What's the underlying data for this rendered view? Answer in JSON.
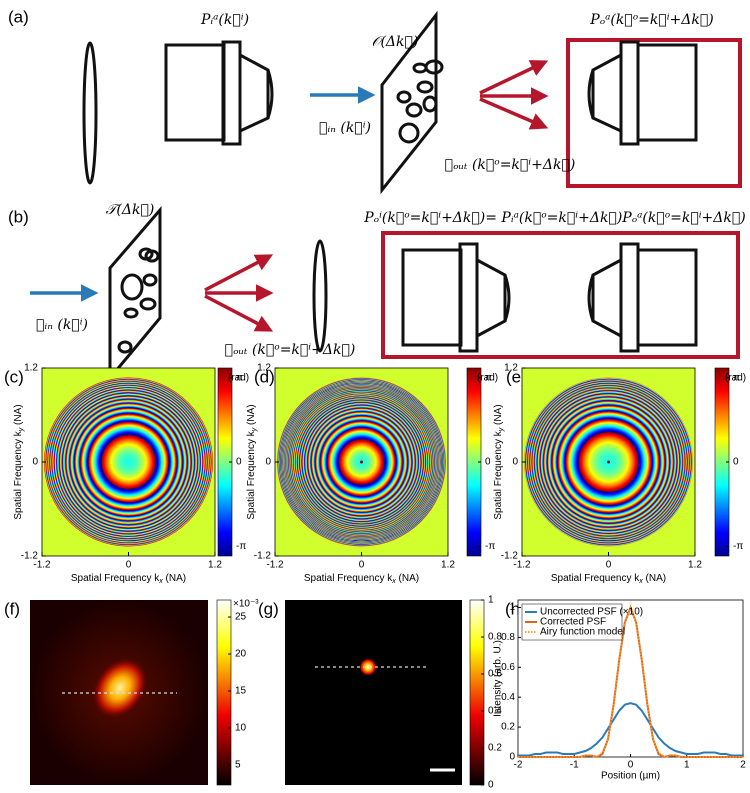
{
  "panel_labels": [
    "(a)",
    "(b)",
    "(c)",
    "(d)",
    "(e)",
    "(f)",
    "(g)",
    "(h)"
  ],
  "panel_a": {
    "input_pupil": "Pᵢᵃ(k⃗ⁱ)",
    "object": "𝒪(Δk⃗)",
    "input_field": "ℰᵢₙ (k⃗ⁱ)",
    "output_pupil": "Pₒᵃ(k⃗ᵒ=k⃗ⁱ+Δk⃗)",
    "output_field": "ℰₒᵤₜ (k⃗ᵒ=k⃗ⁱ+Δk⃗)"
  },
  "panel_b": {
    "transmission": "𝒯(Δk⃗)",
    "input_field": "ℰᵢₙ (k⃗ⁱ)",
    "output_field": "ℰₒᵤₜ (k⃗ᵒ=k⃗ⁱ+Δk⃗)",
    "effective_pupil": "Pₒⁱ(k⃗ᵒ=k⃗ⁱ+Δk⃗)= Pᵢᵃ(k⃗ᵒ=k⃗ⁱ+Δk⃗)Pₒᵃ(k⃗ᵒ=k⃗ⁱ+Δk⃗)"
  },
  "phase_maps": {
    "x_label": {
      "text": "Spatial Frequency k",
      "sub": "x",
      "tail": " (NA)"
    },
    "y_label": {
      "text": "Spatial Frequency k",
      "sub": "y",
      "tail": " (NA)"
    },
    "xlim": [
      -1.2,
      1.2
    ],
    "xticks": [
      -1.2,
      0,
      1.2
    ],
    "ylim": [
      -1.2,
      1.2
    ],
    "yticks": [
      -1.2,
      0,
      1.2
    ],
    "colorbar_unit": "(rad)",
    "clim": [
      -3.5,
      3.5
    ],
    "cticks": [
      {
        "value": 3.1416,
        "label": "π"
      },
      0,
      {
        "value": -3.1416,
        "label": "-π"
      }
    ]
  },
  "psf_images": [
    {
      "colorbar_multiplier": "×10⁻³",
      "clim": [
        2.3,
        27.3
      ],
      "cticks": [
        5,
        10,
        15,
        20,
        25
      ]
    },
    {
      "clim": [
        0,
        1
      ],
      "cticks": [
        0,
        0.2,
        0.4,
        0.6,
        0.8,
        1
      ]
    }
  ],
  "chart_data": {
    "type": "line",
    "x_label": "Position (µm)",
    "y_label": "Intensity (arb. U.)",
    "xlim": [
      -2,
      2
    ],
    "xticks": [
      -2,
      -1,
      0,
      1,
      2
    ],
    "ylim": [
      0,
      1.05
    ],
    "yticks": [
      0,
      0.2,
      0.4,
      0.6,
      0.8,
      1
    ],
    "legend": "upper left",
    "x": [
      -2,
      -1.9,
      -1.8,
      -1.7,
      -1.6,
      -1.5,
      -1.4,
      -1.3,
      -1.2,
      -1.1,
      -1,
      -0.9,
      -0.8,
      -0.7,
      -0.6,
      -0.5,
      -0.4,
      -0.3,
      -0.2,
      -0.1,
      0,
      0.1,
      0.2,
      0.3,
      0.4,
      0.5,
      0.6,
      0.7,
      0.8,
      0.9,
      1,
      1.1,
      1.2,
      1.3,
      1.4,
      1.5,
      1.6,
      1.7,
      1.8,
      1.9,
      2
    ],
    "series": [
      {
        "name": "Uncorrected PSF (×10)",
        "color": "#2b7bba",
        "linestyle": "solid",
        "values": [
          0.01,
          0.01,
          0.01,
          0.02,
          0.02,
          0.03,
          0.03,
          0.03,
          0.02,
          0.02,
          0.02,
          0.03,
          0.04,
          0.06,
          0.09,
          0.13,
          0.19,
          0.25,
          0.31,
          0.35,
          0.36,
          0.35,
          0.31,
          0.25,
          0.19,
          0.13,
          0.09,
          0.06,
          0.04,
          0.03,
          0.02,
          0.02,
          0.02,
          0.03,
          0.03,
          0.03,
          0.02,
          0.02,
          0.01,
          0.01,
          0.01
        ]
      },
      {
        "name": "Corrected PSF",
        "color": "#e0641e",
        "linestyle": "solid",
        "values": [
          0,
          0,
          0,
          0,
          0,
          0,
          0,
          0,
          0,
          0,
          0,
          0,
          0.01,
          0.01,
          0,
          0.02,
          0.12,
          0.35,
          0.65,
          0.9,
          1,
          0.9,
          0.65,
          0.35,
          0.12,
          0.02,
          0,
          0.01,
          0.01,
          0,
          0,
          0,
          0,
          0,
          0,
          0,
          0,
          0,
          0,
          0,
          0
        ]
      },
      {
        "name": "Airy function model",
        "color": "#f0a030",
        "linestyle": "dotted",
        "values": [
          0,
          0,
          0,
          0,
          0,
          0,
          0,
          0,
          0,
          0,
          0,
          0,
          0.01,
          0.01,
          0,
          0.03,
          0.12,
          0.35,
          0.65,
          0.9,
          1,
          0.9,
          0.65,
          0.35,
          0.12,
          0.03,
          0,
          0.01,
          0.01,
          0,
          0,
          0,
          0,
          0,
          0,
          0,
          0,
          0,
          0,
          0,
          0
        ]
      }
    ]
  }
}
